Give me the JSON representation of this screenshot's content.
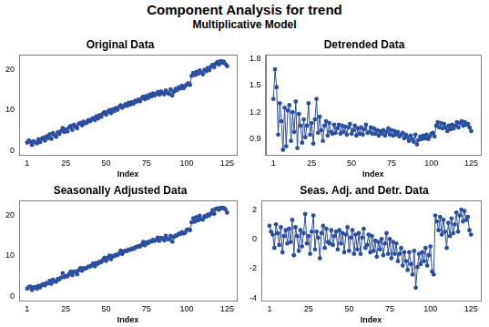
{
  "title": "Component Analysis for trend",
  "subtitle": "Multiplicative Model",
  "chart_data": [
    {
      "type": "line",
      "title": "Original Data",
      "x_label": "Index",
      "color": "#2b4fa0",
      "marker": "circle",
      "line_style": "solid",
      "grid": false,
      "xlim": [
        -4,
        131
      ],
      "xticks": [
        1,
        25,
        50,
        75,
        100,
        125
      ],
      "ylim": [
        -1,
        23.5
      ],
      "yticks": [
        0,
        10,
        20
      ],
      "x": [
        1,
        2,
        3,
        4,
        5,
        6,
        7,
        8,
        9,
        10,
        11,
        12,
        13,
        14,
        15,
        16,
        17,
        18,
        19,
        20,
        21,
        22,
        23,
        24,
        25,
        26,
        27,
        28,
        29,
        30,
        31,
        32,
        33,
        34,
        35,
        36,
        37,
        38,
        39,
        40,
        41,
        42,
        43,
        44,
        45,
        46,
        47,
        48,
        49,
        50,
        51,
        52,
        53,
        54,
        55,
        56,
        57,
        58,
        59,
        60,
        61,
        62,
        63,
        64,
        65,
        66,
        67,
        68,
        69,
        70,
        71,
        72,
        73,
        74,
        75,
        76,
        77,
        78,
        79,
        80,
        81,
        82,
        83,
        84,
        85,
        86,
        87,
        88,
        89,
        90,
        91,
        92,
        93,
        94,
        95,
        96,
        97,
        98,
        99,
        100,
        101,
        102,
        103,
        104,
        105,
        106,
        107,
        108,
        109,
        110,
        111,
        112,
        113,
        114,
        115,
        116,
        117,
        118,
        119,
        120,
        121,
        122,
        123,
        124,
        125
      ],
      "values": [
        2.1,
        2.6,
        2.3,
        1.5,
        2.4,
        2.2,
        1.9,
        2.9,
        2.2,
        3.0,
        3.3,
        2.6,
        3.6,
        3.2,
        4.1,
        3.0,
        4.4,
        3.9,
        3.5,
        4.6,
        4.2,
        4.9,
        5.6,
        4.7,
        5.3,
        4.8,
        5.8,
        6.1,
        5.2,
        6.4,
        6.0,
        5.6,
        6.7,
        6.9,
        6.3,
        7.2,
        6.8,
        7.0,
        7.6,
        7.3,
        7.8,
        8.1,
        7.6,
        8.5,
        8.0,
        8.8,
        8.4,
        9.2,
        9.5,
        8.9,
        9.6,
        10.0,
        9.3,
        10.2,
        9.8,
        10.5,
        10.1,
        10.8,
        11.2,
        10.6,
        11.0,
        11.5,
        11.1,
        11.8,
        11.4,
        12.0,
        11.6,
        12.3,
        12.1,
        12.6,
        12.2,
        12.9,
        13.3,
        12.7,
        13.5,
        13.0,
        13.8,
        13.4,
        14.1,
        13.6,
        14.0,
        14.4,
        13.8,
        14.6,
        14.2,
        13.9,
        14.8,
        14.3,
        14.0,
        15.1,
        13.6,
        14.5,
        15.2,
        14.9,
        15.6,
        15.3,
        16.0,
        15.4,
        15.9,
        16.3,
        16.6,
        16.2,
        18.4,
        19.1,
        18.6,
        19.4,
        18.9,
        19.7,
        19.2,
        18.8,
        19.9,
        19.5,
        20.3,
        19.8,
        20.6,
        21.1,
        20.5,
        21.4,
        21.8,
        21.2,
        22.0,
        21.6,
        21.9,
        21.3,
        20.8
      ]
    },
    {
      "type": "line",
      "title": "Detrended Data",
      "x_label": "Index",
      "color": "#2b4fa0",
      "marker": "circle",
      "line_style": "solid",
      "grid": false,
      "xlim": [
        -4,
        131
      ],
      "xticks": [
        1,
        25,
        50,
        75,
        100,
        125
      ],
      "ylim": [
        0.72,
        1.84
      ],
      "yticks": [
        0.9,
        1.2,
        1.5,
        1.8
      ],
      "x": [
        1,
        2,
        3,
        4,
        5,
        6,
        7,
        8,
        9,
        10,
        11,
        12,
        13,
        14,
        15,
        16,
        17,
        18,
        19,
        20,
        21,
        22,
        23,
        24,
        25,
        26,
        27,
        28,
        29,
        30,
        31,
        32,
        33,
        34,
        35,
        36,
        37,
        38,
        39,
        40,
        41,
        42,
        43,
        44,
        45,
        46,
        47,
        48,
        49,
        50,
        51,
        52,
        53,
        54,
        55,
        56,
        57,
        58,
        59,
        60,
        61,
        62,
        63,
        64,
        65,
        66,
        67,
        68,
        69,
        70,
        71,
        72,
        73,
        74,
        75,
        76,
        77,
        78,
        79,
        80,
        81,
        82,
        83,
        84,
        85,
        86,
        87,
        88,
        89,
        90,
        91,
        92,
        93,
        94,
        95,
        96,
        97,
        98,
        99,
        100,
        101,
        102,
        103,
        104,
        105,
        106,
        107,
        108,
        109,
        110,
        111,
        112,
        113,
        114,
        115,
        116,
        117,
        118,
        119,
        120,
        121,
        122,
        123,
        124,
        125
      ],
      "values": [
        1.35,
        1.68,
        1.48,
        0.95,
        1.3,
        1.1,
        0.78,
        1.25,
        0.82,
        1.22,
        1.28,
        0.88,
        1.2,
        0.98,
        1.32,
        0.8,
        1.18,
        1.05,
        0.86,
        1.12,
        0.92,
        1.05,
        1.3,
        0.95,
        1.08,
        0.85,
        1.12,
        1.35,
        0.97,
        1.15,
        1.0,
        0.88,
        1.05,
        1.1,
        0.94,
        1.08,
        0.98,
        0.96,
        1.06,
        0.97,
        1.02,
        1.06,
        0.96,
        1.05,
        0.98,
        1.04,
        0.95,
        1.03,
        1.07,
        0.96,
        1.0,
        1.05,
        0.94,
        1.02,
        0.96,
        1.03,
        0.95,
        1.01,
        1.06,
        0.97,
        0.98,
        1.03,
        0.96,
        1.02,
        0.96,
        1.0,
        0.94,
        0.99,
        0.96,
        1.0,
        0.94,
        0.98,
        1.02,
        0.95,
        1.0,
        0.94,
        0.99,
        0.95,
        0.98,
        0.93,
        0.95,
        0.97,
        0.91,
        0.95,
        0.92,
        0.88,
        0.94,
        0.9,
        0.87,
        0.95,
        0.84,
        0.89,
        0.93,
        0.9,
        0.94,
        0.91,
        0.95,
        0.9,
        0.93,
        0.96,
        0.97,
        0.93,
        1.05,
        1.09,
        1.03,
        1.08,
        1.02,
        1.07,
        1.03,
        0.99,
        1.05,
        1.01,
        1.06,
        1.02,
        1.05,
        1.09,
        1.03,
        1.08,
        1.1,
        1.05,
        1.09,
        1.06,
        1.07,
        1.03,
        0.99
      ]
    },
    {
      "type": "line",
      "title": "Seasonally Adjusted Data",
      "x_label": "Index",
      "color": "#2b4fa0",
      "marker": "circle",
      "line_style": "solid",
      "grid": false,
      "xlim": [
        -4,
        131
      ],
      "xticks": [
        1,
        25,
        50,
        75,
        100,
        125
      ],
      "ylim": [
        -1,
        23.5
      ],
      "yticks": [
        0,
        10,
        20
      ],
      "x": [
        1,
        2,
        3,
        4,
        5,
        6,
        7,
        8,
        9,
        10,
        11,
        12,
        13,
        14,
        15,
        16,
        17,
        18,
        19,
        20,
        21,
        22,
        23,
        24,
        25,
        26,
        27,
        28,
        29,
        30,
        31,
        32,
        33,
        34,
        35,
        36,
        37,
        38,
        39,
        40,
        41,
        42,
        43,
        44,
        45,
        46,
        47,
        48,
        49,
        50,
        51,
        52,
        53,
        54,
        55,
        56,
        57,
        58,
        59,
        60,
        61,
        62,
        63,
        64,
        65,
        66,
        67,
        68,
        69,
        70,
        71,
        72,
        73,
        74,
        75,
        76,
        77,
        78,
        79,
        80,
        81,
        82,
        83,
        84,
        85,
        86,
        87,
        88,
        89,
        90,
        91,
        92,
        93,
        94,
        95,
        96,
        97,
        98,
        99,
        100,
        101,
        102,
        103,
        104,
        105,
        106,
        107,
        108,
        109,
        110,
        111,
        112,
        113,
        114,
        115,
        116,
        117,
        118,
        119,
        120,
        121,
        122,
        123,
        124,
        125
      ],
      "values": [
        2.0,
        2.4,
        2.5,
        1.7,
        2.3,
        2.4,
        2.0,
        2.7,
        2.3,
        2.9,
        3.1,
        2.8,
        3.4,
        3.3,
        3.9,
        3.2,
        4.2,
        3.8,
        3.7,
        4.4,
        4.3,
        4.7,
        5.8,
        4.8,
        5.1,
        5.0,
        5.6,
        6.2,
        5.3,
        6.2,
        6.1,
        5.5,
        6.5,
        7.0,
        6.4,
        7.0,
        6.9,
        7.1,
        7.4,
        7.4,
        7.7,
        8.2,
        7.5,
        8.3,
        8.1,
        8.6,
        8.5,
        9.0,
        9.6,
        8.8,
        9.5,
        10.1,
        9.2,
        10.0,
        9.9,
        10.3,
        10.2,
        10.6,
        11.3,
        10.5,
        11.1,
        11.3,
        11.2,
        11.6,
        11.5,
        11.8,
        11.7,
        12.1,
        12.2,
        12.4,
        12.3,
        12.7,
        13.4,
        12.6,
        13.3,
        13.1,
        13.6,
        13.5,
        13.9,
        13.7,
        13.9,
        14.5,
        13.7,
        14.4,
        14.3,
        13.8,
        14.9,
        14.1,
        14.1,
        14.9,
        13.5,
        14.6,
        15.0,
        15.0,
        15.4,
        15.4,
        15.8,
        15.5,
        15.7,
        16.4,
        16.5,
        16.3,
        18.2,
        19.2,
        18.4,
        19.5,
        18.7,
        19.8,
        19.0,
        18.9,
        19.7,
        19.6,
        20.1,
        19.9,
        20.4,
        21.2,
        20.3,
        21.5,
        21.6,
        21.3,
        21.8,
        21.7,
        21.7,
        21.4,
        20.6
      ]
    },
    {
      "type": "line",
      "title": "Seas. Adj. and Detr. Data",
      "x_label": "Index",
      "color": "#2b4fa0",
      "marker": "circle",
      "line_style": "solid",
      "grid": false,
      "xlim": [
        -4,
        131
      ],
      "xticks": [
        1,
        25,
        50,
        75,
        100,
        125
      ],
      "ylim": [
        -4.2,
        2.6
      ],
      "yticks": [
        -4,
        -2,
        0,
        2
      ],
      "x": [
        1,
        2,
        3,
        4,
        5,
        6,
        7,
        8,
        9,
        10,
        11,
        12,
        13,
        14,
        15,
        16,
        17,
        18,
        19,
        20,
        21,
        22,
        23,
        24,
        25,
        26,
        27,
        28,
        29,
        30,
        31,
        32,
        33,
        34,
        35,
        36,
        37,
        38,
        39,
        40,
        41,
        42,
        43,
        44,
        45,
        46,
        47,
        48,
        49,
        50,
        51,
        52,
        53,
        54,
        55,
        56,
        57,
        58,
        59,
        60,
        61,
        62,
        63,
        64,
        65,
        66,
        67,
        68,
        69,
        70,
        71,
        72,
        73,
        74,
        75,
        76,
        77,
        78,
        79,
        80,
        81,
        82,
        83,
        84,
        85,
        86,
        87,
        88,
        89,
        90,
        91,
        92,
        93,
        94,
        95,
        96,
        97,
        98,
        99,
        100,
        101,
        102,
        103,
        104,
        105,
        106,
        107,
        108,
        109,
        110,
        111,
        112,
        113,
        114,
        115,
        116,
        117,
        118,
        119,
        120,
        121,
        122,
        123,
        124,
        125
      ],
      "values": [
        0.9,
        0.5,
        0.3,
        -0.6,
        1.0,
        0.4,
        -0.4,
        0.8,
        -0.9,
        0.2,
        0.6,
        -0.3,
        0.7,
        -0.2,
        1.3,
        -1.1,
        0.8,
        0.2,
        -0.8,
        0.6,
        -0.5,
        0.4,
        1.7,
        -0.3,
        0.2,
        -1.0,
        0.5,
        1.6,
        -0.7,
        0.5,
        0.1,
        -1.3,
        0.4,
        0.9,
        -0.6,
        0.7,
        -0.2,
        -0.3,
        0.6,
        -0.4,
        0.2,
        0.5,
        -0.7,
        0.6,
        -0.3,
        0.4,
        -0.9,
        0.3,
        0.8,
        -0.8,
        0.1,
        0.6,
        -1.0,
        0.3,
        -0.7,
        0.4,
        -1.0,
        0.1,
        0.7,
        -0.6,
        -0.4,
        0.3,
        -0.9,
        0.2,
        -0.8,
        -0.1,
        -1.2,
        -0.2,
        -0.7,
        0.0,
        -1.1,
        -0.3,
        0.4,
        -1.0,
        0.0,
        -1.3,
        -0.2,
        -1.0,
        -0.3,
        -1.5,
        -1.0,
        -0.6,
        -1.8,
        -0.9,
        -1.5,
        -2.1,
        -0.9,
        -1.7,
        -2.4,
        -0.8,
        -3.3,
        -1.9,
        -1.0,
        -1.7,
        -0.9,
        -1.5,
        -0.6,
        -1.8,
        -1.1,
        -0.5,
        -2.2,
        -2.4,
        1.6,
        1.2,
        0.6,
        1.5,
        0.3,
        1.3,
        0.5,
        -0.6,
        1.1,
        0.2,
        1.4,
        0.4,
        1.0,
        1.8,
        0.5,
        1.6,
        2.0,
        1.2,
        1.9,
        1.3,
        1.5,
        0.6,
        0.3
      ]
    }
  ]
}
